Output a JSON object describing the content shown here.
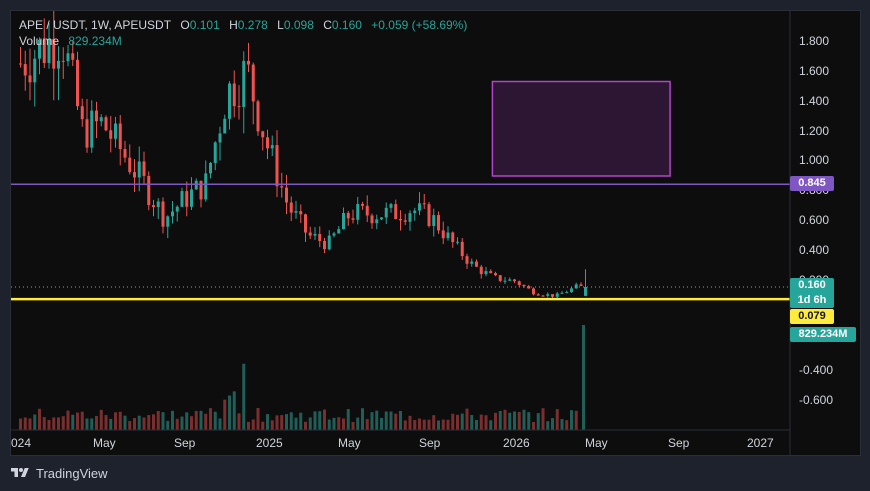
{
  "legend": {
    "symbol": "APE / USDT, 1W, APEUSDT",
    "o_label": "O",
    "o_value": "0.101",
    "h_label": "H",
    "h_value": "0.278",
    "l_label": "L",
    "l_value": "0.098",
    "c_label": "C",
    "c_value": "0.160",
    "change": "+0.059 (+58.69%)",
    "volume_label": "Volume",
    "volume_value": "829.234M"
  },
  "price_axis": {
    "ticks": [
      "1.800",
      "1.600",
      "1.400",
      "1.200",
      "1.000",
      "0.800",
      "0.600",
      "0.400",
      "0.200",
      "-0.400",
      "-0.600"
    ],
    "tag_level": "0.845",
    "tag_price": "0.160",
    "tag_countdown": "1d 6h",
    "tag_support": "0.079",
    "tag_volume": "829.234M"
  },
  "time_axis": {
    "labels": [
      "024",
      "May",
      "Sep",
      "2025",
      "May",
      "Sep",
      "2026",
      "May",
      "Sep",
      "2027"
    ]
  },
  "branding": {
    "name": "TradingView",
    "icon": "tradingview-logo-icon"
  },
  "colors": {
    "up": "#26a69a",
    "down": "#ef5350",
    "level_line": "#7e57c2",
    "support_line": "#ffeb3b",
    "zone_fill": "#2c1633",
    "zone_border": "#b245c9"
  },
  "chart_data": {
    "type": "candlestick",
    "interval": "1W",
    "symbol": "APEUSDT",
    "price_range": [
      -0.7,
      2.0
    ],
    "horizontal_levels": [
      0.845,
      0.079
    ],
    "rectangle_zone": {
      "price_top": 1.53,
      "price_bottom": 0.9,
      "time_start": "2025-12",
      "time_end": "2026-08"
    },
    "last_candle": {
      "open": 0.101,
      "high": 0.278,
      "low": 0.098,
      "close": 0.16,
      "volume": "829.234M"
    },
    "approximate_closes": [
      {
        "t": "2024-01",
        "price": 1.65
      },
      {
        "t": "2024-03",
        "price": 1.85
      },
      {
        "t": "2024-04",
        "price": 1.2
      },
      {
        "t": "2024-05",
        "price": 1.25
      },
      {
        "t": "2024-07",
        "price": 0.85
      },
      {
        "t": "2024-08",
        "price": 0.62
      },
      {
        "t": "2024-09",
        "price": 0.75
      },
      {
        "t": "2024-10",
        "price": 0.85
      },
      {
        "t": "2024-11",
        "price": 1.45
      },
      {
        "t": "2024-12",
        "price": 1.6
      },
      {
        "t": "2025-01",
        "price": 1.1
      },
      {
        "t": "2025-02",
        "price": 0.7
      },
      {
        "t": "2025-03",
        "price": 0.5
      },
      {
        "t": "2025-04",
        "price": 0.45
      },
      {
        "t": "2025-05",
        "price": 0.65
      },
      {
        "t": "2025-06",
        "price": 0.65
      },
      {
        "t": "2025-07",
        "price": 0.65
      },
      {
        "t": "2025-08",
        "price": 0.68
      },
      {
        "t": "2025-09",
        "price": 0.62
      },
      {
        "t": "2025-10",
        "price": 0.45
      },
      {
        "t": "2025-11",
        "price": 0.3
      },
      {
        "t": "2025-12",
        "price": 0.22
      },
      {
        "t": "2026-01",
        "price": 0.2
      },
      {
        "t": "2026-02",
        "price": 0.12
      },
      {
        "t": "2026-03",
        "price": 0.1
      },
      {
        "t": "2026-04",
        "price": 0.16
      }
    ]
  }
}
